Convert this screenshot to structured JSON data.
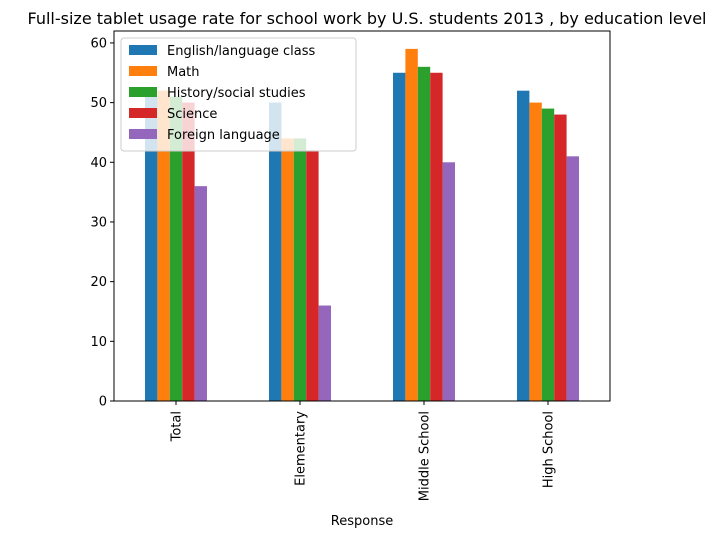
{
  "chart_data": {
    "type": "bar",
    "title": "Full-size tablet usage rate for school work by U.S. students 2013 , by education level",
    "xlabel": "Response",
    "ylabel": "",
    "ylim": [
      0,
      62
    ],
    "yticks": [
      0,
      10,
      20,
      30,
      40,
      50,
      60
    ],
    "categories": [
      "Total",
      "Elementary",
      "Middle School",
      "High School"
    ],
    "grid": false,
    "legend_position": "top-left",
    "series": [
      {
        "name": "English/language class",
        "color": "#1f77b4",
        "values": [
          51,
          50,
          55,
          52
        ]
      },
      {
        "name": "Math",
        "color": "#ff7f0e",
        "values": [
          52,
          44,
          59,
          50
        ]
      },
      {
        "name": "History/social studies",
        "color": "#2ca02c",
        "values": [
          51,
          44,
          56,
          49
        ]
      },
      {
        "name": "Science",
        "color": "#d62728",
        "values": [
          50,
          42,
          55,
          48
        ]
      },
      {
        "name": "Foreign language",
        "color": "#9467bd",
        "values": [
          36,
          16,
          40,
          41
        ]
      }
    ]
  }
}
